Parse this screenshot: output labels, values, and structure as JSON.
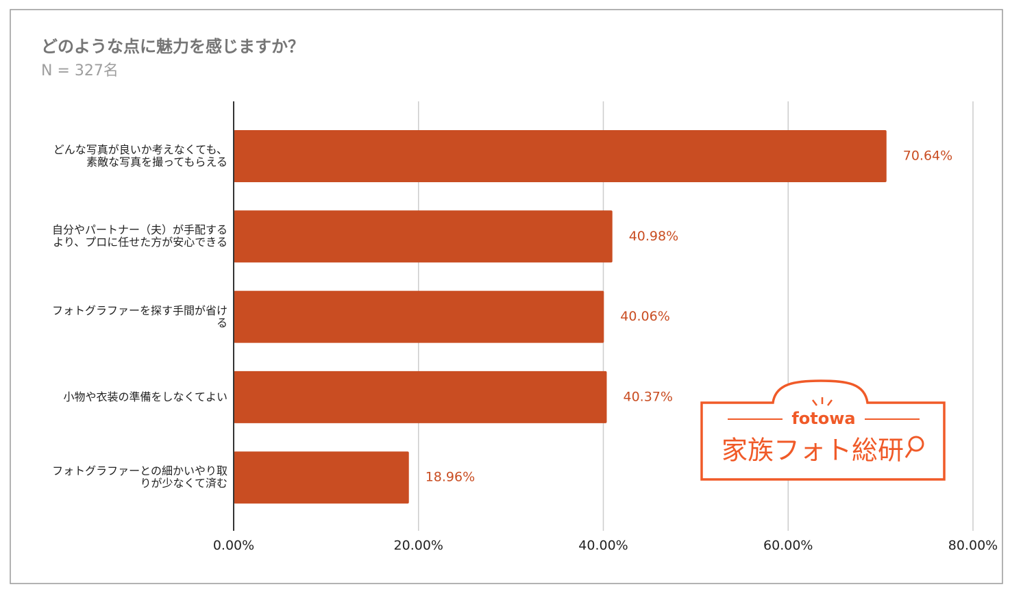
{
  "chart_data": {
    "type": "hbar",
    "title": "どのような点に魅力を感じますか？",
    "subtitle": "N = 327名",
    "categories": [
      "どんな写真が良いか考えなくても、素敵な写真を撮ってもらえる",
      "自分やパートナー（夫）が手配するより、プロに任せた方が安心できる",
      "フォトグラファーを探す手間が省ける",
      "小物や衣装の準備をしなくてよい",
      "フォトグラファーとの細かいやり取りが少なくて済む"
    ],
    "values": [
      70.64,
      40.98,
      40.06,
      40.37,
      18.96
    ],
    "value_labels": [
      "70.64%",
      "40.98%",
      "40.06%",
      "40.37%",
      "18.96%"
    ],
    "color": "#c94d22",
    "xlim": [
      0,
      80
    ],
    "xticks": [
      {
        "value": 0,
        "label": "0.00%"
      },
      {
        "value": 20,
        "label": "20.00%"
      },
      {
        "value": 40,
        "label": "40.00%"
      },
      {
        "value": 60,
        "label": "60.00%"
      },
      {
        "value": 80,
        "label": "80.00%"
      }
    ],
    "grid": true
  },
  "logo": {
    "brand": "fotowa",
    "name": "家族フォト総研"
  }
}
